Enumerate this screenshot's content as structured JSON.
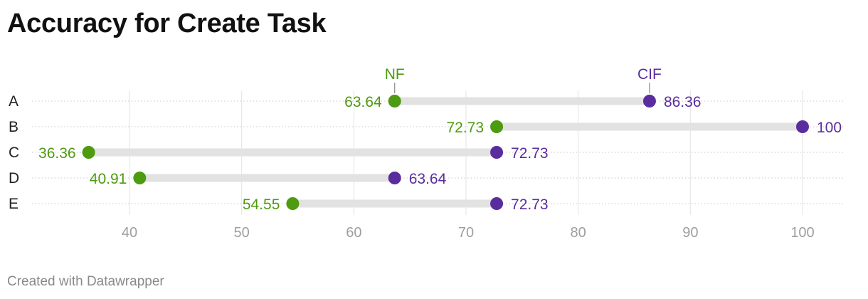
{
  "title": "Accuracy for Create Task",
  "footer": "Created with Datawrapper",
  "chart_data": {
    "type": "dot-range",
    "categories": [
      "A",
      "B",
      "C",
      "D",
      "E"
    ],
    "series": [
      {
        "name": "NF",
        "color": "#4e9a10",
        "values": [
          63.64,
          72.73,
          36.36,
          40.91,
          54.55
        ],
        "labels": [
          "63.64",
          "72.73",
          "36.36",
          "40.91",
          "54.55"
        ]
      },
      {
        "name": "CIF",
        "color": "#5a2d9e",
        "values": [
          86.36,
          100,
          72.73,
          63.64,
          72.73
        ],
        "labels": [
          "86.36",
          "100",
          "72.73",
          "63.64",
          "72.73"
        ]
      }
    ],
    "x_ticks": [
      40,
      50,
      60,
      70,
      80,
      90,
      100
    ],
    "xlim": [
      31.5,
      104
    ],
    "grid": true
  }
}
